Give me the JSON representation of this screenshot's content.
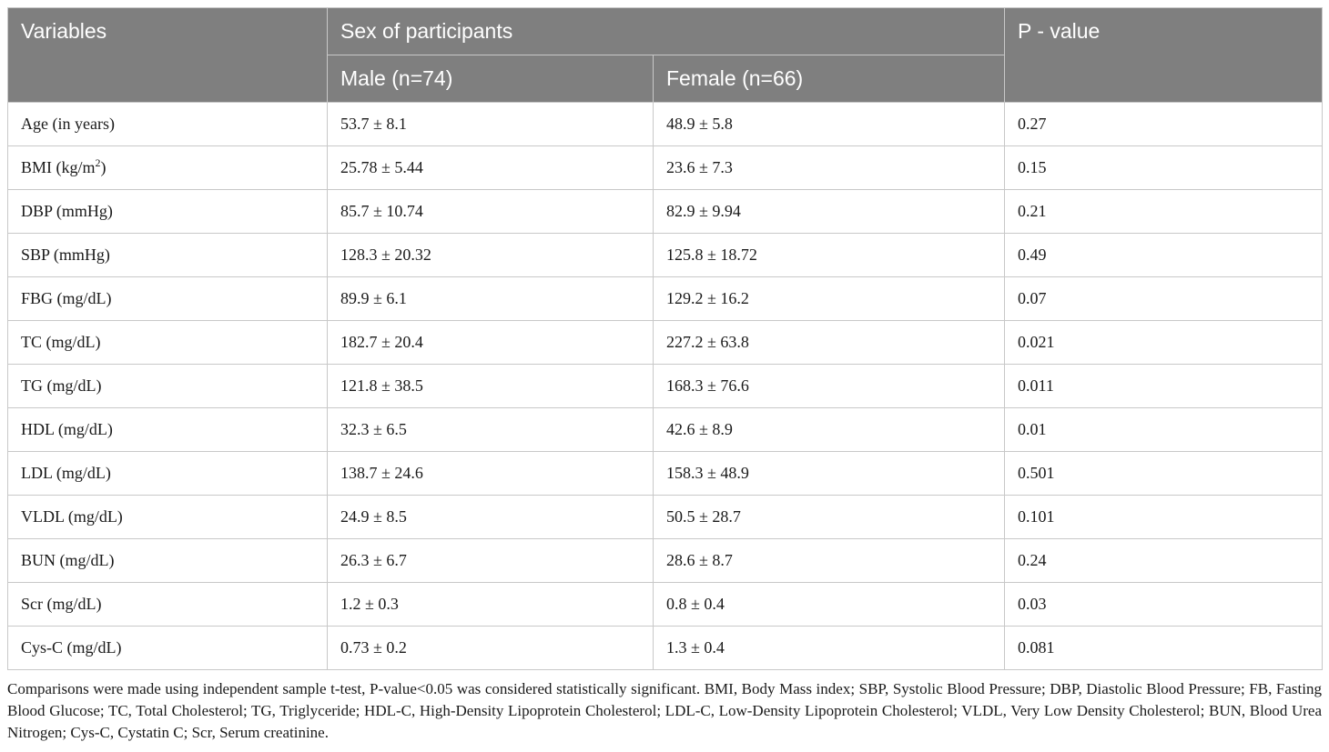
{
  "table": {
    "headers": {
      "variables": "Variables",
      "sex_group": "Sex of participants",
      "male": "Male (n=74)",
      "female": "Female (n=66)",
      "p_value": "P - value"
    },
    "rows": [
      {
        "variable": "Age (in years)",
        "male": "53.7 ± 8.1",
        "female": "48.9 ± 5.8",
        "p": "0.27"
      },
      {
        "variable": "BMI (kg/m",
        "variable_sup": "2",
        "variable_suffix": ")",
        "male": "25.78 ± 5.44",
        "female": "23.6 ± 7.3",
        "p": "0.15"
      },
      {
        "variable": "DBP (mmHg)",
        "male": "85.7 ± 10.74",
        "female": "82.9 ± 9.94",
        "p": "0.21"
      },
      {
        "variable": "SBP (mmHg)",
        "male": "128.3 ± 20.32",
        "female": "125.8 ± 18.72",
        "p": "0.49"
      },
      {
        "variable": "FBG (mg/dL)",
        "male": "89.9 ± 6.1",
        "female": "129.2 ± 16.2",
        "p": "0.07"
      },
      {
        "variable": "TC (mg/dL)",
        "male": "182.7 ± 20.4",
        "female": "227.2 ± 63.8",
        "p": "0.021"
      },
      {
        "variable": "TG (mg/dL)",
        "male": "121.8 ± 38.5",
        "female": "168.3 ± 76.6",
        "p": "0.011"
      },
      {
        "variable": "HDL (mg/dL)",
        "male": "32.3 ± 6.5",
        "female": "42.6 ± 8.9",
        "p": "0.01"
      },
      {
        "variable": "LDL (mg/dL)",
        "male": "138.7 ± 24.6",
        "female": "158.3 ± 48.9",
        "p": "0.501"
      },
      {
        "variable": "VLDL (mg/dL)",
        "male": "24.9 ± 8.5",
        "female": "50.5 ± 28.7",
        "p": "0.101"
      },
      {
        "variable": "BUN (mg/dL)",
        "male": "26.3 ± 6.7",
        "female": "28.6 ± 8.7",
        "p": "0.24"
      },
      {
        "variable": "Scr (mg/dL)",
        "male": "1.2 ± 0.3",
        "female": "0.8 ± 0.4",
        "p": "0.03"
      },
      {
        "variable": "Cys-C (mg/dL)",
        "male": "0.73 ± 0.2",
        "female": "1.3 ± 0.4",
        "p": "0.081"
      }
    ]
  },
  "footnote": "Comparisons were made using independent sample t-test, P-value<0.05 was considered statistically significant. BMI, Body Mass index; SBP, Systolic Blood Pressure; DBP, Diastolic Blood Pressure; FB, Fasting Blood Glucose; TC, Total Cholesterol; TG, Triglyceride; HDL-C, High-Density Lipoprotein Cholesterol; LDL-C, Low-Density Lipoprotein Cholesterol; VLDL, Very Low Density Cholesterol; BUN, Blood Urea Nitrogen; Cys-C, Cystatin C; Scr, Serum creatinine.",
  "colors": {
    "header_bg": "#7f7f7f",
    "header_text": "#ffffff",
    "border": "#c8c8c8"
  }
}
